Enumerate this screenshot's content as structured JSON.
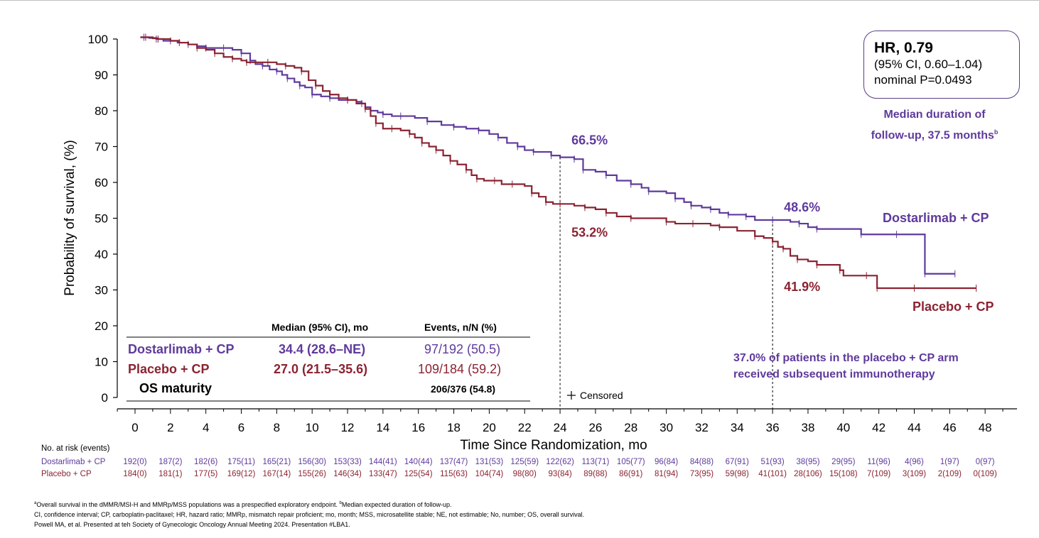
{
  "chart_data": {
    "type": "line",
    "step": true,
    "xlabel": "Time Since Randomization, mo",
    "ylabel": "Probability of survival, (%)",
    "xlim": [
      -1,
      49
    ],
    "ylim": [
      0,
      100
    ],
    "xticks": [
      0,
      2,
      4,
      6,
      8,
      10,
      12,
      14,
      16,
      18,
      20,
      22,
      24,
      26,
      28,
      30,
      32,
      34,
      36,
      38,
      40,
      42,
      44,
      46,
      48
    ],
    "yticks": [
      0,
      10,
      20,
      30,
      40,
      50,
      60,
      70,
      80,
      90,
      100
    ],
    "grid": false,
    "series": [
      {
        "name": "Dostarlimab + CP",
        "color": "#5f3a9c",
        "points": [
          [
            0.3,
            100.5
          ],
          [
            0.5,
            100.5
          ],
          [
            0.8,
            100.3
          ],
          [
            1.2,
            100
          ],
          [
            1.6,
            99.5
          ],
          [
            2.0,
            99.5
          ],
          [
            2.4,
            99
          ],
          [
            3.0,
            98.5
          ],
          [
            3.5,
            98
          ],
          [
            4.0,
            97.5
          ],
          [
            4.4,
            97.5
          ],
          [
            5.0,
            97.5
          ],
          [
            5.5,
            97
          ],
          [
            6.0,
            96
          ],
          [
            6.3,
            96
          ],
          [
            6.5,
            94
          ],
          [
            6.8,
            93
          ],
          [
            7.2,
            92.5
          ],
          [
            7.6,
            91.5
          ],
          [
            8.0,
            91
          ],
          [
            8.3,
            90
          ],
          [
            8.6,
            89
          ],
          [
            9.0,
            88
          ],
          [
            9.3,
            87
          ],
          [
            9.6,
            86.5
          ],
          [
            10.0,
            84.5
          ],
          [
            10.5,
            84
          ],
          [
            11.0,
            83.5
          ],
          [
            11.5,
            83
          ],
          [
            12.0,
            83
          ],
          [
            12.5,
            82.5
          ],
          [
            12.8,
            82
          ],
          [
            13.0,
            81
          ],
          [
            13.3,
            80
          ],
          [
            13.7,
            79.5
          ],
          [
            14.0,
            79
          ],
          [
            14.5,
            78.5
          ],
          [
            15.0,
            78.5
          ],
          [
            15.8,
            78
          ],
          [
            16.5,
            77
          ],
          [
            17.3,
            76
          ],
          [
            18.0,
            75.5
          ],
          [
            18.7,
            75
          ],
          [
            19.4,
            74.5
          ],
          [
            20.0,
            73.5
          ],
          [
            20.5,
            72.5
          ],
          [
            21.0,
            71
          ],
          [
            21.6,
            70
          ],
          [
            22.0,
            69
          ],
          [
            22.5,
            68.5
          ],
          [
            23.0,
            68.5
          ],
          [
            23.5,
            67.5
          ],
          [
            24.0,
            67.0
          ],
          [
            24.8,
            66.5
          ],
          [
            25.0,
            66.5
          ],
          [
            25.3,
            63.5
          ],
          [
            26.0,
            63
          ],
          [
            26.6,
            62
          ],
          [
            27.2,
            60.5
          ],
          [
            28.0,
            59.5
          ],
          [
            28.6,
            58.5
          ],
          [
            29.0,
            57.5
          ],
          [
            30.0,
            57
          ],
          [
            30.5,
            55.5
          ],
          [
            31.0,
            54.5
          ],
          [
            31.4,
            53.5
          ],
          [
            32.0,
            53
          ],
          [
            32.5,
            52.5
          ],
          [
            33.0,
            51.5
          ],
          [
            33.5,
            51
          ],
          [
            34.0,
            51
          ],
          [
            34.5,
            50.5
          ],
          [
            35.0,
            49.5
          ],
          [
            36.0,
            49.5
          ],
          [
            37.0,
            49
          ],
          [
            37.5,
            48.5
          ],
          [
            38.0,
            47.5
          ],
          [
            38.5,
            47
          ],
          [
            40.0,
            47
          ],
          [
            41.0,
            45.5
          ],
          [
            42.0,
            45.5
          ],
          [
            43.0,
            45.5
          ],
          [
            44.5,
            45.5
          ],
          [
            44.6,
            34.5
          ],
          [
            45.5,
            34.5
          ],
          [
            46.3,
            34.5
          ]
        ]
      },
      {
        "name": "Placebo + CP",
        "color": "#8b2332",
        "points": [
          [
            0.3,
            100.5
          ],
          [
            0.6,
            100.5
          ],
          [
            1.0,
            100.2
          ],
          [
            1.3,
            100
          ],
          [
            2.0,
            99.5
          ],
          [
            2.5,
            99
          ],
          [
            3.0,
            98.5
          ],
          [
            3.5,
            97.5
          ],
          [
            4.0,
            97
          ],
          [
            4.5,
            96
          ],
          [
            5.0,
            95
          ],
          [
            5.5,
            94.5
          ],
          [
            6.0,
            94
          ],
          [
            6.3,
            93.5
          ],
          [
            7.0,
            93.5
          ],
          [
            7.5,
            93.5
          ],
          [
            8.0,
            93
          ],
          [
            8.5,
            92.5
          ],
          [
            9.0,
            92
          ],
          [
            9.4,
            91
          ],
          [
            9.8,
            88.5
          ],
          [
            10.2,
            87
          ],
          [
            10.6,
            85.5
          ],
          [
            11.0,
            84.5
          ],
          [
            11.5,
            83.5
          ],
          [
            12.0,
            83
          ],
          [
            12.5,
            82
          ],
          [
            13.0,
            80.5
          ],
          [
            13.3,
            78.5
          ],
          [
            13.6,
            76.5
          ],
          [
            14.0,
            75
          ],
          [
            14.5,
            75
          ],
          [
            15.0,
            74.5
          ],
          [
            15.5,
            73.5
          ],
          [
            15.8,
            72.5
          ],
          [
            16.2,
            71
          ],
          [
            16.6,
            70
          ],
          [
            17.0,
            69
          ],
          [
            17.4,
            67.5
          ],
          [
            17.8,
            66
          ],
          [
            18.2,
            65
          ],
          [
            18.7,
            63.5
          ],
          [
            19.0,
            62
          ],
          [
            19.3,
            61
          ],
          [
            19.7,
            60.5
          ],
          [
            20.3,
            60.5
          ],
          [
            20.7,
            59.5
          ],
          [
            21.3,
            59.5
          ],
          [
            22.0,
            59
          ],
          [
            22.4,
            57
          ],
          [
            22.8,
            56
          ],
          [
            23.2,
            54.5
          ],
          [
            23.6,
            54
          ],
          [
            24.0,
            54
          ],
          [
            24.8,
            53.5
          ],
          [
            25.4,
            53
          ],
          [
            26.0,
            52.5
          ],
          [
            26.6,
            51.5
          ],
          [
            27.2,
            50.5
          ],
          [
            28.0,
            50
          ],
          [
            29.0,
            50
          ],
          [
            30.0,
            49
          ],
          [
            30.5,
            48.5
          ],
          [
            31.5,
            48.5
          ],
          [
            32.5,
            48
          ],
          [
            33.0,
            47.5
          ],
          [
            34.0,
            46.5
          ],
          [
            35.0,
            45
          ],
          [
            35.5,
            44.5
          ],
          [
            36.0,
            43.5
          ],
          [
            36.3,
            42
          ],
          [
            36.6,
            41.5
          ],
          [
            37.0,
            39.5
          ],
          [
            37.4,
            38.5
          ],
          [
            38.0,
            38
          ],
          [
            38.5,
            37
          ],
          [
            39.5,
            37
          ],
          [
            39.8,
            35.5
          ],
          [
            40.0,
            34
          ],
          [
            41.3,
            34
          ],
          [
            41.8,
            34
          ],
          [
            41.9,
            30.5
          ],
          [
            43.0,
            30.5
          ],
          [
            44.0,
            30.5
          ],
          [
            46.0,
            30.5
          ],
          [
            47.5,
            30.5
          ]
        ]
      }
    ],
    "annotations": [
      {
        "text": "66.5%",
        "x": 24,
        "y": 67,
        "series": "Dostarlimab + CP"
      },
      {
        "text": "53.2%",
        "x": 24,
        "y": 54,
        "series": "Placebo + CP"
      },
      {
        "text": "48.6%",
        "x": 36,
        "y": 49.5,
        "series": "Dostarlimab + CP"
      },
      {
        "text": "41.9%",
        "x": 36,
        "y": 42,
        "series": "Placebo + CP"
      }
    ],
    "reference_lines_x": [
      24,
      36
    ],
    "censored_legend": "Censored"
  },
  "hr_box": {
    "title": "HR, 0.79",
    "ci": "(95% CI, 0.60–1.04)",
    "p": "nominal P=0.0493"
  },
  "followup": {
    "line1": "Median duration of",
    "line2": "follow-up, 37.5 months",
    "sup": "b"
  },
  "curve_labels": {
    "dostarlimab": "Dostarlimab + CP",
    "placebo": "Placebo + CP"
  },
  "summary_table": {
    "col1": "Median (95% CI), mo",
    "col2": "Events, n/N (%)",
    "rows": [
      {
        "label": "Dostarlimab + CP",
        "median": "34.4 (28.6–NE)",
        "events": "97/192 (50.5)"
      },
      {
        "label": "Placebo + CP",
        "median": "27.0 (21.5–35.6)",
        "events": "109/184 (59.2)"
      },
      {
        "label": "OS maturity",
        "median": "",
        "events": "206/376 (54.8)"
      }
    ]
  },
  "immunotherapy_note": {
    "line1": "37.0% of patients in the placebo + CP arm",
    "line2": "received subsequent immunotherapy"
  },
  "risk_table": {
    "title": "No. at risk (events)",
    "rows": [
      {
        "label": "Dostarlimab + CP",
        "values": [
          "192(0)",
          "187(2)",
          "182(6)",
          "175(11)",
          "165(21)",
          "156(30)",
          "153(33)",
          "144(41)",
          "140(44)",
          "137(47)",
          "131(53)",
          "125(59)",
          "122(62)",
          "113(71)",
          "105(77)",
          "96(84)",
          "84(88)",
          "67(91)",
          "51(93)",
          "38(95)",
          "29(95)",
          "11(96)",
          "4(96)",
          "1(97)",
          "0(97)"
        ]
      },
      {
        "label": "Placebo + CP",
        "values": [
          "184(0)",
          "181(1)",
          "177(5)",
          "169(12)",
          "167(14)",
          "155(26)",
          "146(34)",
          "133(47)",
          "125(54)",
          "115(63)",
          "104(74)",
          "98(80)",
          "93(84)",
          "89(88)",
          "86(91)",
          "81(94)",
          "73(95)",
          "59(98)",
          "41(101)",
          "28(106)",
          "15(108)",
          "7(109)",
          "3(109)",
          "2(109)",
          "0(109)"
        ]
      }
    ]
  },
  "footnotes": {
    "line1_a": "a",
    "line1_a_text": "Overall survival in the dMMR/MSI-H and MMRp/MSS populations was a prespecified exploratory endpoint. ",
    "line1_b": "b",
    "line1_b_text": "Median expected duration of follow-up.",
    "line2": "CI, confidence interval; CP, carboplatin-paclitaxel; HR, hazard ratio; MMRp, mismatch repair proficient; mo, month; MSS, microsatellite stable; NE, not estimable; No, number; OS, overall survival.",
    "line3": "Powell MA, et al. Presented at teh Society of Gynecologic Oncology Annual Meeting 2024. Presentation #LBA1."
  },
  "colors": {
    "dostarlimab": "#5f3a9c",
    "placebo": "#8b2332",
    "box_border": "#5b3f86"
  }
}
